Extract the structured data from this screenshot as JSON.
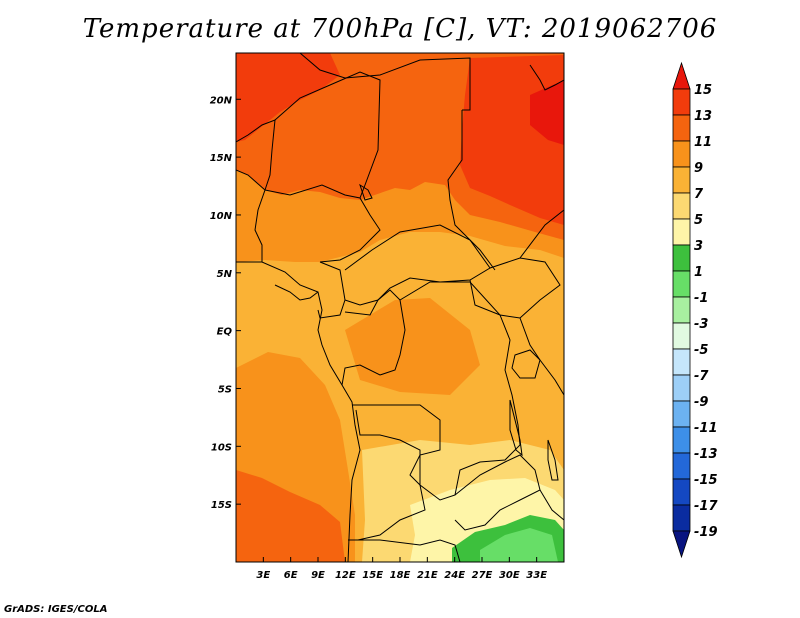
{
  "title": "Temperature at 700hPa [C], VT: 2019062706",
  "credit": "GrADS: IGES/COLA",
  "map": {
    "lon_range": [
      0,
      36
    ],
    "lat_range": [
      -20,
      24
    ],
    "lon_ticks": [
      "3E",
      "6E",
      "9E",
      "12E",
      "15E",
      "18E",
      "21E",
      "24E",
      "27E",
      "30E",
      "33E"
    ],
    "lon_tick_values": [
      3,
      6,
      9,
      12,
      15,
      18,
      21,
      24,
      27,
      30,
      33
    ],
    "lat_ticks": [
      "20N",
      "15N",
      "10N",
      "5N",
      "EQ",
      "5S",
      "10S",
      "15S"
    ],
    "lat_tick_values": [
      20,
      15,
      10,
      5,
      0,
      -5,
      -10,
      -15
    ]
  },
  "colorbar": {
    "labels": [
      "15",
      "13",
      "11",
      "9",
      "7",
      "5",
      "3",
      "1",
      "-1",
      "-3",
      "-5",
      "-7",
      "-9",
      "-11",
      "-13",
      "-15",
      "-17",
      "-19"
    ],
    "colors": [
      "#e8170c",
      "#f23c0c",
      "#f5640f",
      "#f8921b",
      "#fab235",
      "#fcd972",
      "#fef5a8",
      "#3dc03d",
      "#67de67",
      "#a8f0a0",
      "#e1fae1",
      "#c5e6fb",
      "#9dcff7",
      "#6cb2f1",
      "#3d8fe8",
      "#2368d9",
      "#1448c2",
      "#0a2ca0",
      "#081480"
    ]
  }
}
